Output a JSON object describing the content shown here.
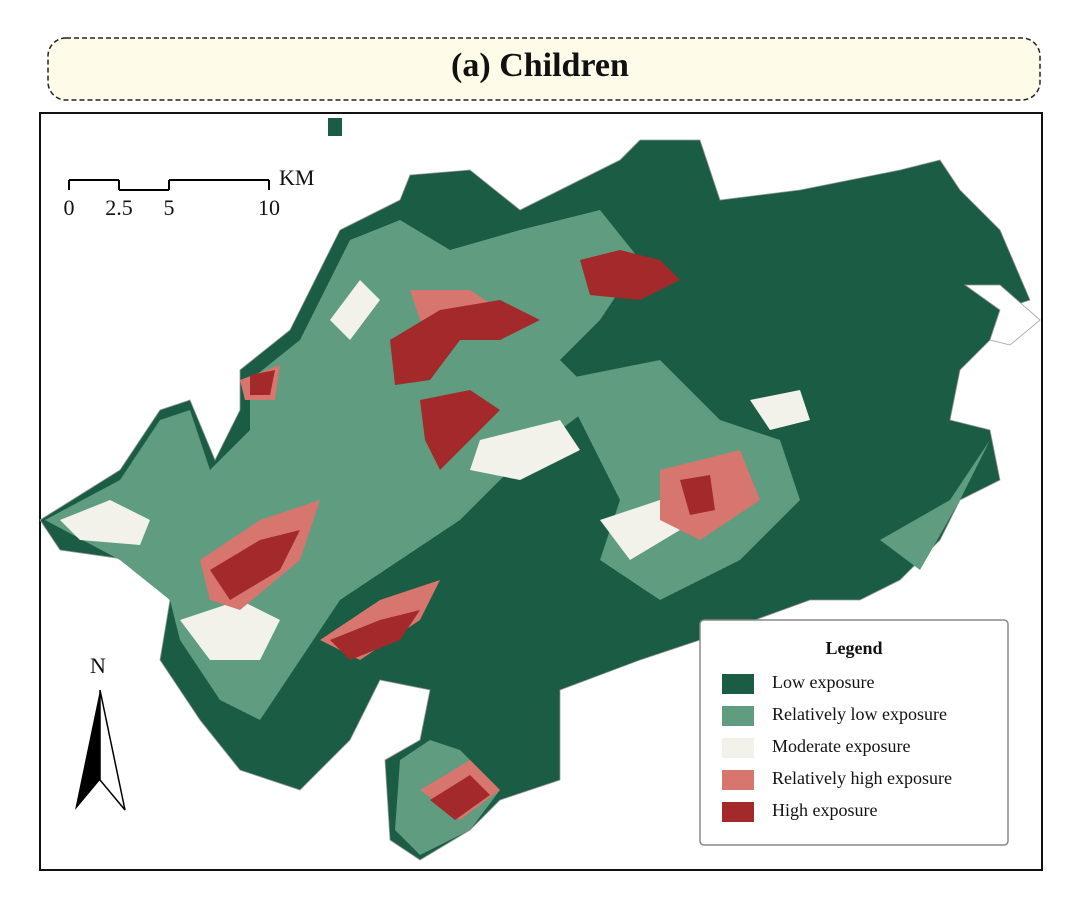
{
  "title": "(a) Children",
  "scale_bar": {
    "ticks": [
      0,
      2.5,
      5,
      10
    ],
    "unit": "KM"
  },
  "north_arrow": {
    "label": "N"
  },
  "legend": {
    "title": "Legend",
    "items": [
      {
        "label": "Low exposure",
        "color": "#1b5c44"
      },
      {
        "label": "Relatively low exposure",
        "color": "#5f9c80"
      },
      {
        "label": "Moderate exposure",
        "color": "#f3f2ea"
      },
      {
        "label": "Relatively high exposure",
        "color": "#d6766f"
      },
      {
        "label": "High exposure",
        "color": "#a3292b"
      }
    ]
  }
}
